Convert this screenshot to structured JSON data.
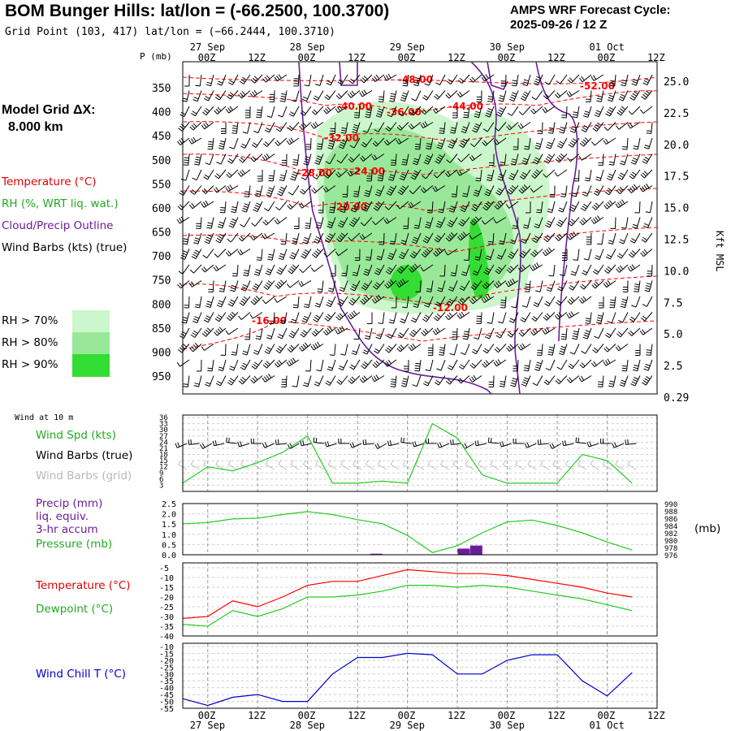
{
  "header": {
    "title": "BOM Bunger Hills:  lat/lon = (-66.2500, 100.3700)",
    "grid_point": "Grid Point (103, 417) lat/lon = (−66.2444, 100.3710)",
    "cycle_line1": "AMPS WRF Forecast Cycle:",
    "cycle_line2": "2025-09-26 / 12  Z"
  },
  "legend": {
    "model_grid_line1": "Model Grid ΔX:",
    "model_grid_line2": "8.000 km",
    "temperature": "Temperature (°C)",
    "rh": "RH (%, WRT liq. wat.)",
    "cloud": "Cloud/Precip Outline",
    "wind_barbs": "Wind Barbs (kts) (true)",
    "rh70": "RH > 70%",
    "rh80": "RH > 80%",
    "rh90": "RH > 90%",
    "wind10m": "Wind at 10 m",
    "wind_spd": "Wind Spd (kts)",
    "wind_barbs_true": "Wind Barbs (true)",
    "wind_barbs_grid": "Wind Barbs (grid)",
    "precip1": "Precip (mm)",
    "precip2": "liq. equiv.",
    "precip3": "3-hr accum",
    "pressure": "Pressure (mb)",
    "mb_unit": "(mb)",
    "temp2": "Temperature (°C)",
    "dewpoint": "Dewpoint (°C)",
    "windchill": "Wind Chill T (°C)"
  },
  "colors": {
    "temp": "#ff0000",
    "rh": "#22cc22",
    "cloud": "#6a1d9a",
    "grid": "#999999",
    "windchill": "#0000cc",
    "rh70": "#ccf7cc",
    "rh80": "#99e899",
    "rh90": "#33dd33"
  },
  "chart_data": [
    {
      "type": "heatmap",
      "title": "Time-height cross section",
      "ylabel": "P (mb)",
      "ylabel_right": "Kft MSL",
      "time_ticks": [
        "00Z",
        "12Z",
        "00Z",
        "12Z",
        "00Z",
        "12Z",
        "00Z",
        "12Z",
        "00Z",
        "12Z"
      ],
      "date_labels": [
        "27 Sep",
        "28 Sep",
        "29 Sep",
        "30 Sep",
        "01 Oct"
      ],
      "pressure_levels": [
        350,
        400,
        450,
        500,
        550,
        600,
        650,
        700,
        750,
        800,
        850,
        900,
        950
      ],
      "height_kft": [
        "25.0",
        "22.5",
        "20.0",
        "17.5",
        "15.0",
        "12.5",
        "10.0",
        "7.5",
        "5.0",
        "2.5",
        "0.29"
      ],
      "temperature_contour_labels": [
        "-48.00",
        "-40.00",
        "-36.00",
        "-44.00",
        "-52.00",
        "-32.00",
        "-28.00",
        "-24.00",
        "-20.00",
        "-16.00",
        "-12.00"
      ]
    },
    {
      "type": "line",
      "title": "Wind Spd (kts)",
      "x_hours": [
        0,
        6,
        12,
        18,
        24,
        30,
        36,
        42,
        48,
        54,
        60,
        66,
        72,
        78,
        84,
        90,
        96,
        102,
        108
      ],
      "values": [
        4,
        12,
        10,
        14,
        19,
        27,
        4,
        4,
        5,
        4,
        33,
        26,
        8,
        4,
        4,
        4,
        18,
        15,
        4
      ],
      "y_ticks": [
        3,
        6,
        9,
        12,
        15,
        18,
        21,
        24,
        27,
        30,
        33,
        36
      ],
      "ylim": [
        0,
        36
      ]
    },
    {
      "type": "bar",
      "title": "Precip (mm) / Pressure (mb)",
      "x_hours": [
        0,
        6,
        12,
        18,
        24,
        30,
        36,
        42,
        48,
        54,
        60,
        66,
        72,
        78,
        84,
        90,
        96,
        102,
        108
      ],
      "pressure_mb": [
        984.5,
        984.8,
        985.8,
        986.0,
        987.0,
        987.8,
        987.0,
        985.6,
        984.5,
        981.3,
        976.6,
        978.5,
        982.0,
        985.0,
        985.5,
        984.0,
        982.0,
        979.5,
        977.3
      ],
      "precip_hours": [
        48,
        69,
        72
      ],
      "precip_values": [
        0.05,
        0.3,
        0.45
      ],
      "y_ticks_left": [
        "0.0",
        "0.5",
        "1.0",
        "1.5",
        "2.0",
        "2.5"
      ],
      "y_ticks_right": [
        976,
        978,
        980,
        982,
        984,
        986,
        988,
        990
      ],
      "ylim": [
        0,
        2.5
      ]
    },
    {
      "type": "line",
      "title": "Temperature / Dewpoint (°C)",
      "x_hours": [
        0,
        6,
        12,
        18,
        24,
        30,
        36,
        42,
        48,
        54,
        60,
        66,
        72,
        78,
        84,
        90,
        96,
        102,
        108
      ],
      "series": [
        {
          "name": "Temperature",
          "values": [
            -31,
            -30,
            -22,
            -25,
            -20,
            -14,
            -12,
            -12,
            -9,
            -6,
            -7,
            -8,
            -8,
            -9,
            -11,
            -13,
            -15,
            -18,
            -20
          ]
        },
        {
          "name": "Dewpoint",
          "values": [
            -34,
            -35,
            -27,
            -30,
            -26,
            -20,
            -20,
            -19,
            -17,
            -14,
            -14,
            -15,
            -14,
            -15,
            -17,
            -19,
            -21,
            -24,
            -27
          ]
        }
      ],
      "y_ticks": [
        -40,
        -35,
        -30,
        -25,
        -20,
        -15,
        -10,
        -5
      ],
      "ylim": [
        -40,
        -5
      ]
    },
    {
      "type": "line",
      "title": "Wind Chill T (°C)",
      "x_hours": [
        0,
        6,
        12,
        18,
        24,
        30,
        36,
        42,
        48,
        54,
        60,
        66,
        72,
        78,
        84,
        90,
        96,
        102,
        108
      ],
      "values": [
        -48,
        -53,
        -47,
        -45,
        -50,
        -50,
        -30,
        -18,
        -18,
        -15,
        -16,
        -30,
        -30,
        -20,
        -16,
        -16,
        -35,
        -46,
        -29
      ],
      "y_ticks": [
        -55,
        -50,
        -45,
        -40,
        -35,
        -30,
        -25,
        -20,
        -15,
        -10
      ],
      "ylim": [
        -55,
        -10
      ]
    }
  ]
}
